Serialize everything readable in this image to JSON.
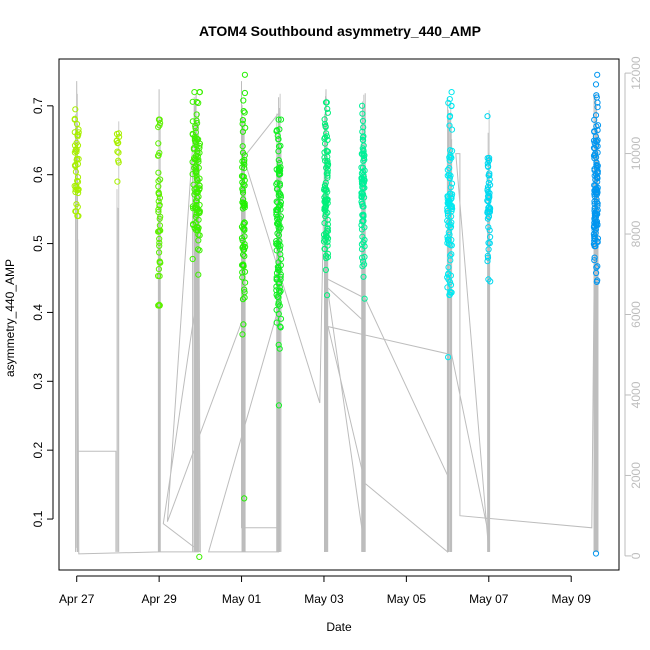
{
  "chart_data": {
    "type": "scatter",
    "title": "ATOM4 Southbound asymmetry_440_AMP",
    "xlabel": "Date",
    "ylabel": "asymmetry_440_AMP",
    "x_ticks": [
      "Apr 27",
      "Apr 29",
      "May 01",
      "May 03",
      "May 05",
      "May 07",
      "May 09"
    ],
    "x_tick_days": [
      0,
      2,
      4,
      6,
      8,
      10,
      12
    ],
    "x_range_days": [
      -0.43,
      13.16
    ],
    "y_ticks": [
      "0.1",
      "0.2",
      "0.3",
      "0.4",
      "0.5",
      "0.6",
      "0.7"
    ],
    "y_tick_values": [
      0.1,
      0.2,
      0.3,
      0.4,
      0.5,
      0.6,
      0.7
    ],
    "ylim": [
      0.026,
      0.768
    ],
    "y2_ticks": [
      "0",
      "2000",
      "4000",
      "6000",
      "8000",
      "10000",
      "12000"
    ],
    "y2_tick_values": [
      0,
      2000,
      4000,
      6000,
      8000,
      10000,
      12000
    ],
    "y2lim": [
      -350,
      12350
    ],
    "secondary_line_color": "#bdbdbd",
    "clusters": [
      {
        "day": 0.0,
        "spread": 0.1,
        "center": 0.615,
        "sd": 0.035,
        "n": 45,
        "min": 0.54,
        "max": 0.695,
        "color": "#a8f000"
      },
      {
        "day": 1.0,
        "spread": 0.06,
        "center": 0.625,
        "sd": 0.02,
        "n": 12,
        "min": 0.59,
        "max": 0.66,
        "color": "#a8f000"
      },
      {
        "day": 2.0,
        "spread": 0.06,
        "center": 0.56,
        "sd": 0.08,
        "n": 45,
        "min": 0.41,
        "max": 0.68,
        "color": "#5ef000"
      },
      {
        "day": 2.9,
        "spread": 0.18,
        "center": 0.6,
        "sd": 0.05,
        "n": 110,
        "min": 0.045,
        "max": 0.72,
        "color": "#3ef000"
      },
      {
        "day": 4.05,
        "spread": 0.08,
        "center": 0.55,
        "sd": 0.08,
        "n": 70,
        "min": 0.13,
        "max": 0.745,
        "color": "#22f000"
      },
      {
        "day": 4.9,
        "spread": 0.12,
        "center": 0.52,
        "sd": 0.08,
        "n": 110,
        "min": 0.265,
        "max": 0.68,
        "color": "#10f020"
      },
      {
        "day": 6.05,
        "spread": 0.1,
        "center": 0.56,
        "sd": 0.06,
        "n": 90,
        "min": 0.425,
        "max": 0.705,
        "color": "#00f07a"
      },
      {
        "day": 6.95,
        "spread": 0.08,
        "center": 0.57,
        "sd": 0.06,
        "n": 80,
        "min": 0.42,
        "max": 0.7,
        "color": "#00f098"
      },
      {
        "day": 9.05,
        "spread": 0.12,
        "center": 0.55,
        "sd": 0.07,
        "n": 90,
        "min": 0.335,
        "max": 0.72,
        "color": "#00e8f0"
      },
      {
        "day": 10.0,
        "spread": 0.07,
        "center": 0.56,
        "sd": 0.05,
        "n": 50,
        "min": 0.445,
        "max": 0.685,
        "color": "#00d8f0"
      },
      {
        "day": 12.6,
        "spread": 0.1,
        "center": 0.58,
        "sd": 0.06,
        "n": 120,
        "min": 0.05,
        "max": 0.745,
        "color": "#0096f0"
      }
    ],
    "secondary_path": [
      [
        0.0,
        200
      ],
      [
        0.0,
        11600
      ],
      [
        0.0,
        200
      ],
      [
        0.0,
        2600
      ],
      [
        0.95,
        2600
      ],
      [
        0.95,
        100
      ],
      [
        0.95,
        2600
      ],
      [
        0.0,
        2600
      ],
      [
        0.0,
        11800
      ],
      [
        0.05,
        50
      ],
      [
        2.0,
        100
      ],
      [
        2.0,
        11600
      ],
      [
        2.0,
        100
      ],
      [
        2.85,
        100
      ],
      [
        2.85,
        11400
      ],
      [
        2.85,
        100
      ],
      [
        2.95,
        100
      ],
      [
        2.95,
        11000
      ],
      [
        3.0,
        100
      ],
      [
        2.1,
        800
      ],
      [
        2.85,
        6000
      ],
      [
        2.9,
        11500
      ],
      [
        2.2,
        850
      ],
      [
        4.0,
        5800
      ],
      [
        4.0,
        11800
      ],
      [
        4.0,
        700
      ],
      [
        4.9,
        700
      ],
      [
        4.9,
        11400
      ],
      [
        4.9,
        100
      ],
      [
        3.2,
        100
      ],
      [
        4.85,
        6000
      ],
      [
        4.9,
        11000
      ],
      [
        4.05,
        9900
      ],
      [
        5.9,
        3800
      ],
      [
        6.05,
        11600
      ],
      [
        6.05,
        100
      ],
      [
        6.05,
        6700
      ],
      [
        7.0,
        5800
      ],
      [
        7.0,
        11500
      ],
      [
        7.0,
        100
      ],
      [
        6.05,
        6900
      ],
      [
        7.0,
        6400
      ],
      [
        9.0,
        2000
      ],
      [
        9.0,
        11400
      ],
      [
        9.0,
        100
      ],
      [
        7.0,
        1800
      ],
      [
        6.1,
        5700
      ],
      [
        9.1,
        5000
      ],
      [
        10.0,
        500
      ],
      [
        10.0,
        10000
      ],
      [
        10.0,
        100
      ],
      [
        9.2,
        10000
      ],
      [
        9.3,
        10000
      ],
      [
        9.3,
        1000
      ],
      [
        12.5,
        700
      ],
      [
        12.6,
        11500
      ],
      [
        12.6,
        100
      ]
    ]
  }
}
